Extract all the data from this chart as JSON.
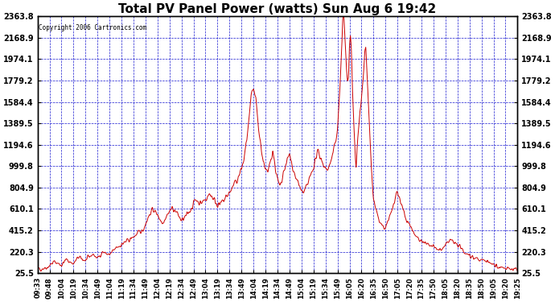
{
  "title": "Total PV Panel Power (watts) Sun Aug 6 19:42",
  "copyright": "Copyright 2006 Cartronics.com",
  "y_ticks": [
    25.5,
    220.3,
    415.2,
    610.1,
    804.9,
    999.8,
    1194.6,
    1389.5,
    1584.4,
    1779.2,
    1974.1,
    2168.9,
    2363.8
  ],
  "y_min": 25.5,
  "y_max": 2363.8,
  "background_color": "#ffffff",
  "grid_color": "#0000cc",
  "line_color": "#cc0000",
  "title_fontsize": 11,
  "x_labels": [
    "09:33",
    "09:48",
    "10:04",
    "10:19",
    "10:34",
    "10:49",
    "11:04",
    "11:19",
    "11:34",
    "11:49",
    "12:04",
    "12:19",
    "12:34",
    "12:49",
    "13:04",
    "13:19",
    "13:34",
    "13:49",
    "14:04",
    "14:19",
    "14:34",
    "14:49",
    "15:04",
    "15:19",
    "15:34",
    "15:49",
    "16:05",
    "16:20",
    "16:35",
    "16:50",
    "17:05",
    "17:20",
    "17:35",
    "17:50",
    "18:05",
    "18:20",
    "18:35",
    "18:50",
    "19:05",
    "19:20",
    "19:25"
  ],
  "keypoints": [
    [
      0.0,
      60
    ],
    [
      0.02,
      80
    ],
    [
      0.035,
      130
    ],
    [
      0.05,
      100
    ],
    [
      0.06,
      150
    ],
    [
      0.075,
      110
    ],
    [
      0.085,
      170
    ],
    [
      0.1,
      140
    ],
    [
      0.115,
      200
    ],
    [
      0.125,
      160
    ],
    [
      0.135,
      220
    ],
    [
      0.15,
      190
    ],
    [
      0.165,
      260
    ],
    [
      0.18,
      300
    ],
    [
      0.195,
      340
    ],
    [
      0.21,
      390
    ],
    [
      0.22,
      420
    ],
    [
      0.23,
      530
    ],
    [
      0.24,
      610
    ],
    [
      0.25,
      560
    ],
    [
      0.26,
      480
    ],
    [
      0.27,
      560
    ],
    [
      0.28,
      620
    ],
    [
      0.29,
      580
    ],
    [
      0.3,
      500
    ],
    [
      0.31,
      540
    ],
    [
      0.32,
      620
    ],
    [
      0.33,
      700
    ],
    [
      0.34,
      660
    ],
    [
      0.35,
      700
    ],
    [
      0.36,
      750
    ],
    [
      0.37,
      680
    ],
    [
      0.38,
      640
    ],
    [
      0.39,
      700
    ],
    [
      0.4,
      760
    ],
    [
      0.41,
      830
    ],
    [
      0.42,
      910
    ],
    [
      0.43,
      1050
    ],
    [
      0.44,
      1380
    ],
    [
      0.445,
      1620
    ],
    [
      0.45,
      1700
    ],
    [
      0.455,
      1600
    ],
    [
      0.46,
      1350
    ],
    [
      0.465,
      1200
    ],
    [
      0.47,
      1050
    ],
    [
      0.475,
      980
    ],
    [
      0.48,
      920
    ],
    [
      0.485,
      1050
    ],
    [
      0.49,
      1150
    ],
    [
      0.495,
      1000
    ],
    [
      0.5,
      870
    ],
    [
      0.505,
      800
    ],
    [
      0.51,
      870
    ],
    [
      0.515,
      980
    ],
    [
      0.52,
      1050
    ],
    [
      0.525,
      1100
    ],
    [
      0.53,
      1020
    ],
    [
      0.535,
      940
    ],
    [
      0.54,
      870
    ],
    [
      0.545,
      820
    ],
    [
      0.55,
      780
    ],
    [
      0.555,
      750
    ],
    [
      0.56,
      800
    ],
    [
      0.565,
      860
    ],
    [
      0.57,
      920
    ],
    [
      0.575,
      1000
    ],
    [
      0.58,
      1070
    ],
    [
      0.585,
      1130
    ],
    [
      0.59,
      1080
    ],
    [
      0.595,
      1030
    ],
    [
      0.6,
      970
    ],
    [
      0.605,
      980
    ],
    [
      0.61,
      1020
    ],
    [
      0.615,
      1100
    ],
    [
      0.62,
      1200
    ],
    [
      0.625,
      1350
    ],
    [
      0.628,
      1550
    ],
    [
      0.63,
      1700
    ],
    [
      0.632,
      1900
    ],
    [
      0.634,
      2100
    ],
    [
      0.636,
      2340
    ],
    [
      0.638,
      2363
    ],
    [
      0.64,
      2200
    ],
    [
      0.642,
      2050
    ],
    [
      0.644,
      1900
    ],
    [
      0.646,
      1750
    ],
    [
      0.648,
      1800
    ],
    [
      0.65,
      2100
    ],
    [
      0.652,
      2200
    ],
    [
      0.654,
      2050
    ],
    [
      0.656,
      1700
    ],
    [
      0.658,
      1500
    ],
    [
      0.66,
      1300
    ],
    [
      0.662,
      1100
    ],
    [
      0.664,
      1000
    ],
    [
      0.666,
      1150
    ],
    [
      0.668,
      1300
    ],
    [
      0.67,
      1400
    ],
    [
      0.672,
      1500
    ],
    [
      0.674,
      1600
    ],
    [
      0.676,
      1700
    ],
    [
      0.678,
      1800
    ],
    [
      0.68,
      1900
    ],
    [
      0.682,
      2050
    ],
    [
      0.684,
      2100
    ],
    [
      0.686,
      1900
    ],
    [
      0.688,
      1700
    ],
    [
      0.69,
      1500
    ],
    [
      0.692,
      1300
    ],
    [
      0.694,
      1100
    ],
    [
      0.696,
      950
    ],
    [
      0.698,
      820
    ],
    [
      0.7,
      700
    ],
    [
      0.705,
      600
    ],
    [
      0.71,
      520
    ],
    [
      0.715,
      480
    ],
    [
      0.72,
      440
    ],
    [
      0.725,
      420
    ],
    [
      0.73,
      500
    ],
    [
      0.735,
      560
    ],
    [
      0.74,
      620
    ],
    [
      0.745,
      700
    ],
    [
      0.75,
      750
    ],
    [
      0.755,
      700
    ],
    [
      0.76,
      620
    ],
    [
      0.765,
      560
    ],
    [
      0.77,
      500
    ],
    [
      0.775,
      470
    ],
    [
      0.78,
      430
    ],
    [
      0.785,
      390
    ],
    [
      0.79,
      360
    ],
    [
      0.795,
      340
    ],
    [
      0.8,
      320
    ],
    [
      0.81,
      290
    ],
    [
      0.82,
      270
    ],
    [
      0.83,
      250
    ],
    [
      0.84,
      230
    ],
    [
      0.85,
      280
    ],
    [
      0.86,
      330
    ],
    [
      0.87,
      300
    ],
    [
      0.88,
      260
    ],
    [
      0.89,
      220
    ],
    [
      0.9,
      190
    ],
    [
      0.91,
      170
    ],
    [
      0.92,
      150
    ],
    [
      0.93,
      140
    ],
    [
      0.94,
      130
    ],
    [
      0.95,
      100
    ],
    [
      0.96,
      85
    ],
    [
      0.97,
      70
    ],
    [
      0.98,
      65
    ],
    [
      0.99,
      60
    ],
    [
      1.0,
      55
    ]
  ]
}
